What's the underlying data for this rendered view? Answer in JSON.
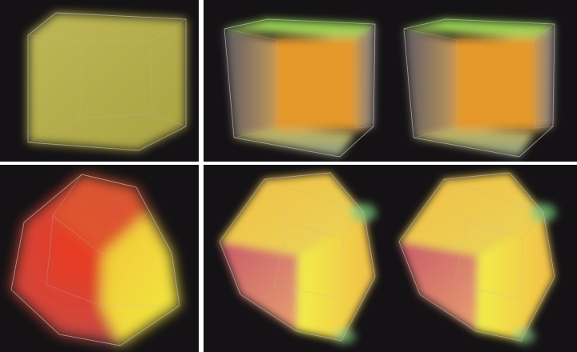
{
  "figure": {
    "background_color": "#141214",
    "separator_color": "#ffffff",
    "panels": [
      {
        "id": "top-left",
        "shape": "cube",
        "view": "front",
        "dominant_colors": [
          "#c9c25a",
          "#b8b148"
        ]
      },
      {
        "id": "top-right",
        "shape": "cube",
        "view": "front",
        "stereo_pair": true,
        "dominant_colors": [
          "#7fc24a",
          "#e29a2a",
          "#9c8a7a",
          "#b7c46a"
        ]
      },
      {
        "id": "bottom-left",
        "shape": "cube",
        "view": "corner",
        "dominant_colors": [
          "#e23a24",
          "#f2d634",
          "#e8e23a"
        ]
      },
      {
        "id": "bottom-right",
        "shape": "cube",
        "view": "corner",
        "stereo_pair": true,
        "dominant_colors": [
          "#f2c040",
          "#b85a6a",
          "#f2ea4a",
          "#7fcf7a"
        ]
      }
    ]
  }
}
